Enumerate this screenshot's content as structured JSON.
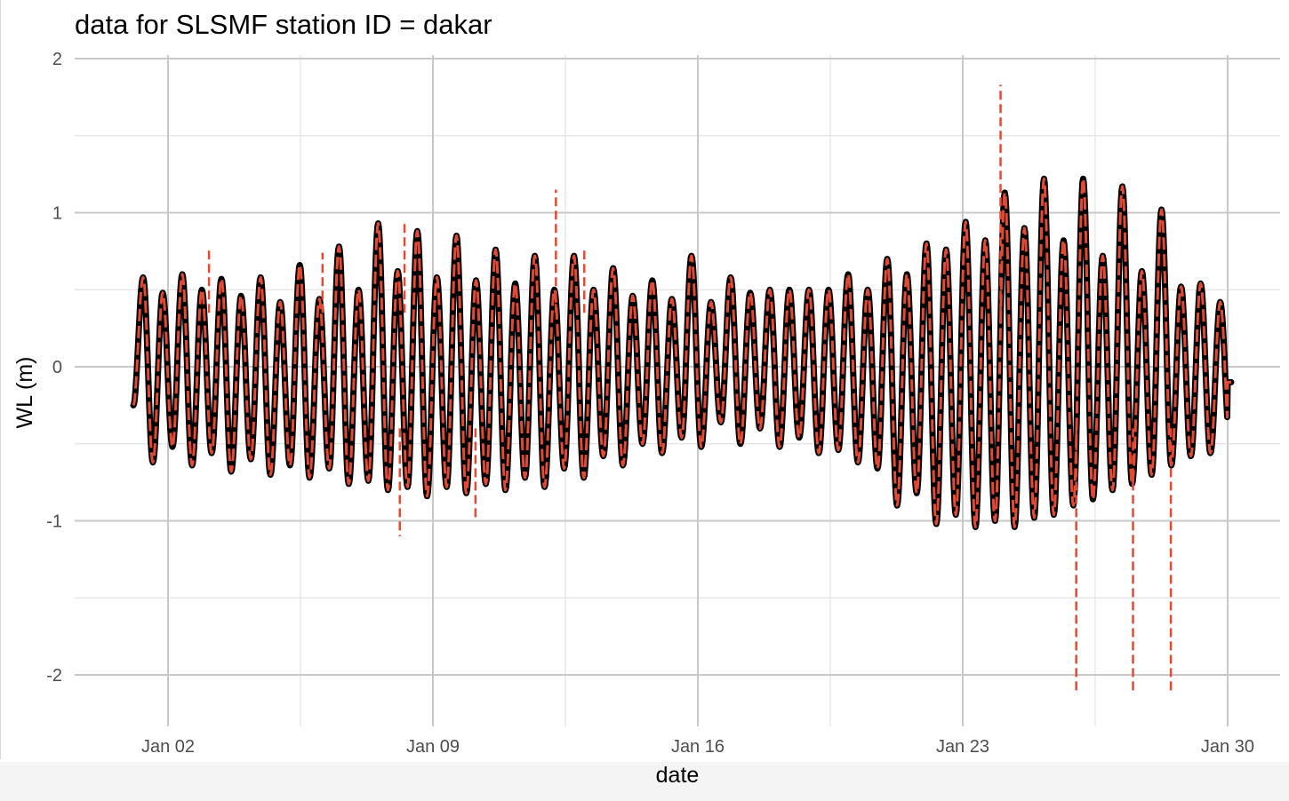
{
  "chart_data": {
    "type": "line",
    "title": "data for SLSMF station ID = dakar",
    "xlabel": "date",
    "ylabel": "WL (m)",
    "x_type": "date",
    "xlim": [
      "2021-01-01",
      "2021-01-30"
    ],
    "ylim": [
      -2.3,
      2.0
    ],
    "x_ticks": [
      "Jan 02",
      "Jan 09",
      "Jan 16",
      "Jan 23",
      "Jan 30"
    ],
    "x_tick_values": [
      "2021-01-02",
      "2021-01-09",
      "2021-01-16",
      "2021-01-23",
      "2021-01-30"
    ],
    "y_ticks": [
      "-2",
      "-1",
      "0",
      "1",
      "2"
    ],
    "y_tick_values": [
      -2,
      -1,
      0,
      1,
      2
    ],
    "grid": true,
    "legend": "none",
    "series": [
      {
        "style": "solid",
        "color": "#000000",
        "daily_tides": [
          {
            "date": "2021-01-01",
            "high1": 0.58,
            "low1": -0.62,
            "high2": 0.48,
            "low2": -0.52
          },
          {
            "date": "2021-01-02",
            "high1": 0.6,
            "low1": -0.64,
            "high2": 0.5,
            "low2": -0.56
          },
          {
            "date": "2021-01-03",
            "high1": 0.57,
            "low1": -0.68,
            "high2": 0.46,
            "low2": -0.6
          },
          {
            "date": "2021-01-04",
            "high1": 0.58,
            "low1": -0.7,
            "high2": 0.42,
            "low2": -0.64
          },
          {
            "date": "2021-01-05",
            "high1": 0.66,
            "low1": -0.72,
            "high2": 0.44,
            "low2": -0.66
          },
          {
            "date": "2021-01-06",
            "high1": 0.78,
            "low1": -0.76,
            "high2": 0.5,
            "low2": -0.7
          },
          {
            "date": "2021-01-07",
            "high1": 0.93,
            "low1": -0.8,
            "high2": 0.62,
            "low2": -0.74
          },
          {
            "date": "2021-01-08",
            "high1": 0.88,
            "low1": -0.84,
            "high2": 0.58,
            "low2": -0.78
          },
          {
            "date": "2021-01-09",
            "high1": 0.85,
            "low1": -0.82,
            "high2": 0.56,
            "low2": -0.78
          },
          {
            "date": "2021-01-10",
            "high1": 0.76,
            "low1": -0.8,
            "high2": 0.54,
            "low2": -0.76
          },
          {
            "date": "2021-01-11",
            "high1": 0.72,
            "low1": -0.78,
            "high2": 0.5,
            "low2": -0.72
          },
          {
            "date": "2021-01-12",
            "high1": 0.72,
            "low1": -0.72,
            "high2": 0.5,
            "low2": -0.66
          },
          {
            "date": "2021-01-13",
            "high1": 0.64,
            "low1": -0.64,
            "high2": 0.48,
            "low2": -0.58
          },
          {
            "date": "2021-01-14",
            "high1": 0.56,
            "low1": -0.56,
            "high2": 0.46,
            "low2": -0.5
          },
          {
            "date": "2021-01-15",
            "high1": 0.72,
            "low1": -0.52,
            "high2": 0.44,
            "low2": -0.46
          },
          {
            "date": "2021-01-16",
            "high1": 0.58,
            "low1": -0.5,
            "high2": 0.42,
            "low2": -0.36
          },
          {
            "date": "2021-01-17",
            "high1": 0.5,
            "low1": -0.52,
            "high2": 0.48,
            "low2": -0.4
          },
          {
            "date": "2021-01-18",
            "high1": 0.5,
            "low1": -0.56,
            "high2": 0.5,
            "low2": -0.46
          },
          {
            "date": "2021-01-19",
            "high1": 0.6,
            "low1": -0.62,
            "high2": 0.5,
            "low2": -0.54
          },
          {
            "date": "2021-01-20",
            "high1": 0.7,
            "low1": -0.72,
            "high2": 0.5,
            "low2": -0.66
          },
          {
            "date": "2021-01-21",
            "high1": 0.8,
            "low1": -0.9,
            "high2": 0.6,
            "low2": -0.82
          },
          {
            "date": "2021-01-22",
            "high1": 0.94,
            "low1": -1.02,
            "high2": 0.76,
            "low2": -0.96
          },
          {
            "date": "2021-01-23",
            "high1": 1.13,
            "low1": -1.04,
            "high2": 0.82,
            "low2": -1.0
          },
          {
            "date": "2021-01-24",
            "high1": 1.22,
            "low1": -1.04,
            "high2": 0.9,
            "low2": -0.98
          },
          {
            "date": "2021-01-25",
            "high1": 1.22,
            "low1": -0.96,
            "high2": 0.82,
            "low2": -0.9
          },
          {
            "date": "2021-01-26",
            "high1": 1.17,
            "low1": -0.86,
            "high2": 0.72,
            "low2": -0.8
          },
          {
            "date": "2021-01-27",
            "high1": 1.02,
            "low1": -0.76,
            "high2": 0.62,
            "low2": -0.7
          },
          {
            "date": "2021-01-28",
            "high1": 0.76,
            "low1": -0.64,
            "high2": 0.52,
            "low2": -0.58
          },
          {
            "date": "2021-01-29",
            "high1": 0.54,
            "low1": -0.56,
            "high2": 0.42,
            "low2": -0.5
          }
        ]
      },
      {
        "style": "dashed",
        "color": "#e34a33",
        "spikes": [
          {
            "date": "2021-01-03T02:00",
            "value": 0.76
          },
          {
            "date": "2021-01-06T02:00",
            "value": 0.74
          },
          {
            "date": "2021-01-08T06:00",
            "value": 0.94
          },
          {
            "date": "2021-01-08T03:00",
            "value": -1.1
          },
          {
            "date": "2021-01-10T03:00",
            "value": -1.0
          },
          {
            "date": "2021-01-12T06:00",
            "value": 1.15
          },
          {
            "date": "2021-01-13T00:00",
            "value": 0.76
          },
          {
            "date": "2021-01-24T00:00",
            "value": 1.83
          },
          {
            "date": "2021-01-26T00:00",
            "value": -2.12
          },
          {
            "date": "2021-01-27T12:00",
            "value": -2.12
          },
          {
            "date": "2021-01-28T12:00",
            "value": -2.12
          }
        ]
      }
    ]
  }
}
